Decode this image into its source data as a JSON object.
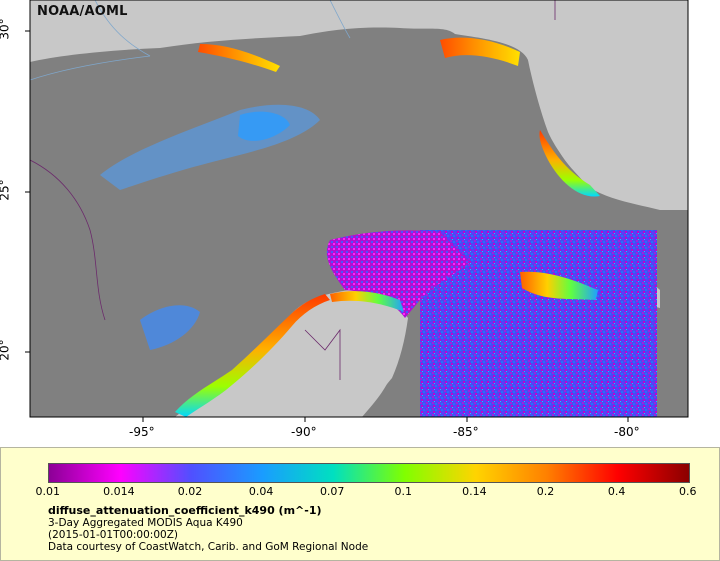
{
  "map": {
    "attribution": "NOAA/AOML",
    "lon_labels": [
      "-95°",
      "-90°",
      "-85°",
      "-80°"
    ],
    "lat_labels": [
      "30°",
      "25°",
      "20°"
    ]
  },
  "legend": {
    "colorbar_ticks": [
      "0.01",
      "0.014",
      "0.02",
      "0.04",
      "0.07",
      "0.1",
      "0.14",
      "0.2",
      "0.4",
      "0.6"
    ],
    "variable": "diffuse_attenuation_coefficient_k490 (m^-1)",
    "description": "3-Day Aggregated MODIS Aqua K490",
    "time": "(2015-01-01T00:00:00Z)",
    "credit": "Data courtesy of CoastWatch, Carib. and GoM Regional Node"
  },
  "colors": {
    "land": "#c8c8c8",
    "no_data_water": "#808080",
    "legend_background": "#ffffcc",
    "colorbar": [
      "#8c0096",
      "#ff00ff",
      "#5050ff",
      "#1a9cff",
      "#00e0c0",
      "#80ff00",
      "#ffd400",
      "#ff8000",
      "#ff0000",
      "#8b0000"
    ]
  }
}
